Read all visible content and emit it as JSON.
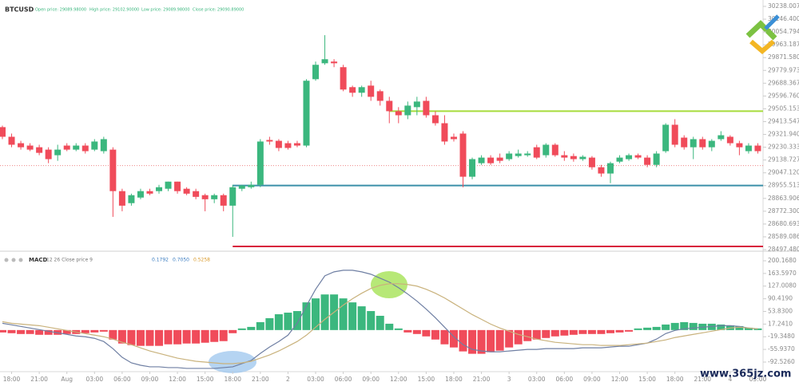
{
  "chart_data": [
    {
      "type": "candlestick",
      "title": "BTCUSD",
      "header_fields": [
        "Open price: 29089.98000",
        "High price: 29102.90000",
        "Low price: 29089.98000",
        "Close price: 29090.89000"
      ],
      "open": [
        29374,
        29305,
        29259,
        29242,
        29230,
        29213,
        29173,
        29242,
        29213,
        29242,
        29213,
        29202,
        29213,
        28916,
        28830,
        28870,
        28916,
        28916,
        28933,
        28984,
        28933,
        28916,
        28887,
        28858,
        28887,
        28812,
        28933,
        28944,
        28961,
        29282,
        29276,
        29259,
        29259,
        29242,
        29717,
        29831,
        29843,
        29803,
        29660,
        29620,
        29671,
        29631,
        29562,
        29488,
        29459,
        29517,
        29562,
        29459,
        29402,
        29305,
        29328,
        29019,
        29116,
        29156,
        29156,
        29145,
        29167,
        29173,
        29230,
        29173,
        29248,
        29173,
        29167,
        29145,
        29156,
        29087,
        29042,
        29127,
        29145,
        29173,
        29156,
        29104,
        29202,
        29391,
        29299,
        29230,
        29288,
        29230,
        29288,
        29305,
        29259,
        29202,
        29242
      ],
      "high": [
        29385,
        29328,
        29276,
        29259,
        29248,
        29230,
        29248,
        29259,
        29259,
        29259,
        29288,
        29305,
        29230,
        28933,
        28898,
        28933,
        28933,
        28961,
        28984,
        28984,
        28944,
        28933,
        28898,
        28898,
        28898,
        28961,
        28961,
        28984,
        29288,
        29305,
        29288,
        29276,
        29276,
        29717,
        29843,
        30032,
        29860,
        29820,
        29671,
        29671,
        29706,
        29643,
        29591,
        29517,
        29557,
        29591,
        29591,
        29488,
        29459,
        29328,
        29345,
        29156,
        29173,
        29173,
        29185,
        29202,
        29213,
        29202,
        29248,
        29259,
        29259,
        29202,
        29185,
        29173,
        29167,
        29104,
        29127,
        29173,
        29185,
        29185,
        29173,
        29202,
        29402,
        29431,
        29316,
        29305,
        29305,
        29288,
        29345,
        29316,
        29276,
        29259,
        29259
      ],
      "low": [
        29288,
        29230,
        29213,
        29202,
        29173,
        29116,
        29133,
        29202,
        29202,
        29185,
        29202,
        29185,
        28732,
        28772,
        28812,
        28858,
        28887,
        28898,
        28916,
        28898,
        28887,
        28858,
        28772,
        28830,
        28772,
        28589,
        28916,
        28933,
        28944,
        29248,
        29202,
        29213,
        29230,
        29230,
        29706,
        29820,
        29803,
        29631,
        29591,
        29591,
        29562,
        29528,
        29402,
        29402,
        29431,
        29459,
        29442,
        29385,
        29248,
        29271,
        28944,
        29001,
        29104,
        29104,
        29116,
        29133,
        29156,
        29162,
        29145,
        29156,
        29162,
        29133,
        29127,
        29133,
        29070,
        29019,
        28973,
        29116,
        29133,
        29145,
        29087,
        29087,
        29190,
        29230,
        29213,
        29145,
        29213,
        29202,
        29276,
        29242,
        29173,
        29185,
        29185
      ],
      "close": [
        29305,
        29248,
        29230,
        29213,
        29190,
        29145,
        29213,
        29213,
        29242,
        29202,
        29271,
        29288,
        28916,
        28812,
        28887,
        28916,
        28898,
        28944,
        28984,
        28916,
        28898,
        28875,
        28858,
        28887,
        28812,
        28944,
        28956,
        28961,
        29271,
        29271,
        29225,
        29225,
        29242,
        29706,
        29820,
        29860,
        29831,
        29643,
        29620,
        29660,
        29591,
        29562,
        29488,
        29459,
        29528,
        29557,
        29459,
        29402,
        29271,
        29288,
        29019,
        29145,
        29156,
        29116,
        29133,
        29185,
        29185,
        29185,
        29156,
        29248,
        29173,
        29156,
        29145,
        29162,
        29087,
        29042,
        29116,
        29156,
        29173,
        29156,
        29104,
        29185,
        29391,
        29248,
        29230,
        29288,
        29230,
        29276,
        29316,
        29259,
        29230,
        29242,
        29202
      ],
      "up_color": "#3bb77e",
      "down_color": "#f04b5a",
      "levels": [
        {
          "value": 29488,
          "color": "#a6dc3c"
        },
        {
          "value": 28956,
          "color": "#3a8fa8"
        },
        {
          "value": 28520,
          "color": "#d81e3c"
        }
      ],
      "last_price": 29099,
      "ylim": [
        28497.4801,
        30238.0074
      ],
      "yticks": [
        {
          "value": 28497.4801,
          "label": "28497.48010"
        },
        {
          "value": 28589.0868,
          "label": "28589.08680"
        },
        {
          "value": 28680.6935,
          "label": "28680.69350"
        },
        {
          "value": 28772.3002,
          "label": "28772.30020"
        },
        {
          "value": 28863.9069,
          "label": "28863.90690"
        },
        {
          "value": 28955.5136,
          "label": "28955.51360"
        },
        {
          "value": 29047.1203,
          "label": "29047.12030"
        },
        {
          "value": 29138.727,
          "label": "29138.72700"
        },
        {
          "value": 29230.3337,
          "label": "29230.33370"
        },
        {
          "value": 29321.9404,
          "label": "29321.94040"
        },
        {
          "value": 29413.5471,
          "label": "29413.54710"
        },
        {
          "value": 29505.1538,
          "label": "29505.15380"
        },
        {
          "value": 29596.7605,
          "label": "29596.76050"
        },
        {
          "value": 29688.3672,
          "label": "29688.36720"
        },
        {
          "value": 29779.9739,
          "label": "29779.97390"
        },
        {
          "value": 29871.5806,
          "label": "29871.58060"
        },
        {
          "value": 29963.1873,
          "label": "29963.18730"
        },
        {
          "value": 30054.794,
          "label": "30054.79400"
        },
        {
          "value": 30146.4007,
          "label": "30146.40070"
        },
        {
          "value": 30238.0074,
          "label": "30238.00740"
        }
      ]
    },
    {
      "type": "macd",
      "title": "MACD",
      "params": "12 26 Close price 9",
      "readouts": [
        {
          "text": "0.1792",
          "color": "#3a7cc0"
        },
        {
          "text": "0.7050",
          "color": "#3a7cc0"
        },
        {
          "text": "0.5258",
          "color": "#d99a2b"
        }
      ],
      "histogram": {
        "up_color": "#3bb77e",
        "down_color": "#f04b5a",
        "values": [
          -6.9,
          -9.1,
          -11.4,
          -11.4,
          -13.7,
          -13.7,
          -13.7,
          -11.4,
          -11.4,
          -9.1,
          -6.9,
          -4.6,
          -27.4,
          -38.9,
          -43.5,
          -45.7,
          -45.7,
          -45.7,
          -41.2,
          -41.2,
          -38.9,
          -38.9,
          -36.6,
          -34.3,
          -32.0,
          -9.1,
          4.6,
          9.1,
          22.9,
          34.3,
          45.7,
          50.3,
          54.9,
          80.0,
          91.5,
          102.9,
          102.9,
          91.5,
          80.0,
          68.6,
          54.9,
          41.2,
          18.3,
          4.6,
          -6.9,
          -11.4,
          -18.3,
          -27.4,
          -41.2,
          -50.3,
          -61.7,
          -68.6,
          -68.6,
          -64.0,
          -59.5,
          -50.3,
          -41.2,
          -32.0,
          -27.4,
          -22.9,
          -18.3,
          -16.0,
          -13.7,
          -11.4,
          -11.4,
          -11.4,
          -9.1,
          -6.9,
          -4.6,
          4.6,
          6.9,
          9.1,
          16.0,
          20.6,
          22.9,
          20.6,
          18.3,
          18.3,
          16.0,
          13.7,
          11.4,
          6.9,
          4.6
        ]
      },
      "series": [
        {
          "color": "#6f7fa3",
          "values": [
            19.5,
            15.0,
            10.4,
            5.8,
            1.2,
            -3.3,
            -7.9,
            -12.5,
            -17.1,
            -19.3,
            -23.9,
            -33.1,
            -53.7,
            -78.8,
            -94.8,
            -101.7,
            -106.2,
            -106.2,
            -108.5,
            -108.5,
            -110.8,
            -110.8,
            -110.8,
            -110.8,
            -108.5,
            -106.2,
            -97.1,
            -87.9,
            -67.4,
            -49.1,
            -33.1,
            -14.8,
            19.5,
            69.8,
            117.9,
            156.7,
            168.2,
            172.8,
            172.8,
            168.2,
            161.3,
            149.9,
            138.5,
            122.4,
            104.1,
            83.6,
            60.7,
            35.5,
            8.1,
            -19.3,
            -42.2,
            -55.9,
            -60.5,
            -62.8,
            -62.8,
            -60.5,
            -58.2,
            -55.9,
            -55.9,
            -53.7,
            -53.7,
            -53.7,
            -53.7,
            -51.4,
            -51.4,
            -51.4,
            -49.1,
            -46.8,
            -46.8,
            -42.2,
            -37.6,
            -26.2,
            -10.2,
            -1.1,
            3.5,
            5.8,
            8.1,
            10.4,
            12.7,
            12.7,
            10.4,
            5.8,
            3.5
          ]
        },
        {
          "color": "#c9b27c",
          "values": [
            24.1,
            19.5,
            17.2,
            15.0,
            12.7,
            8.1,
            3.5,
            -1.1,
            -5.6,
            -10.2,
            -14.8,
            -19.3,
            -26.2,
            -35.4,
            -42.2,
            -51.4,
            -60.5,
            -67.4,
            -74.2,
            -81.1,
            -85.7,
            -90.2,
            -92.5,
            -94.8,
            -97.1,
            -97.1,
            -94.8,
            -90.2,
            -81.1,
            -72.0,
            -60.5,
            -46.8,
            -33.1,
            -14.8,
            8.1,
            31.0,
            51.5,
            72.1,
            90.4,
            106.4,
            120.2,
            129.3,
            133.9,
            133.9,
            131.6,
            127.0,
            117.9,
            106.4,
            92.7,
            76.7,
            60.7,
            44.7,
            31.0,
            17.2,
            5.8,
            -3.3,
            -12.5,
            -19.3,
            -26.2,
            -30.8,
            -35.4,
            -37.6,
            -39.9,
            -42.2,
            -42.2,
            -44.5,
            -44.5,
            -44.5,
            -42.2,
            -39.9,
            -37.6,
            -33.1,
            -28.5,
            -21.6,
            -17.1,
            -12.5,
            -7.9,
            -3.3,
            1.2,
            5.8,
            8.1,
            5.8,
            3.5
          ]
        }
      ],
      "ylim": [
        -92.526,
        200.168
      ],
      "yticks": [
        {
          "value": -92.526,
          "label": "-92.5260"
        },
        {
          "value": -55.937,
          "label": "-55.9370"
        },
        {
          "value": -19.348,
          "label": "-19.3480"
        },
        {
          "value": 17.241,
          "label": "17.2410"
        },
        {
          "value": 53.83,
          "label": "53.8300"
        },
        {
          "value": 90.419,
          "label": "90.4190"
        },
        {
          "value": 127.008,
          "label": "127.0080"
        },
        {
          "value": 163.597,
          "label": "163.5970"
        },
        {
          "value": 200.168,
          "label": "200.1680"
        }
      ],
      "x_labels": [
        "18:00",
        "21:00",
        "Aug",
        "03:00",
        "06:00",
        "09:00",
        "12:00",
        "15:00",
        "18:00",
        "21:00",
        "2",
        "03:00",
        "06:00",
        "09:00",
        "12:00",
        "15:00",
        "18:00",
        "21:00",
        "3",
        "03:00",
        "06:00",
        "09:00",
        "12:00",
        "15:00",
        "18:00",
        "21:00",
        "4",
        "03:00"
      ]
    }
  ],
  "watermark": "www.365jz.com"
}
